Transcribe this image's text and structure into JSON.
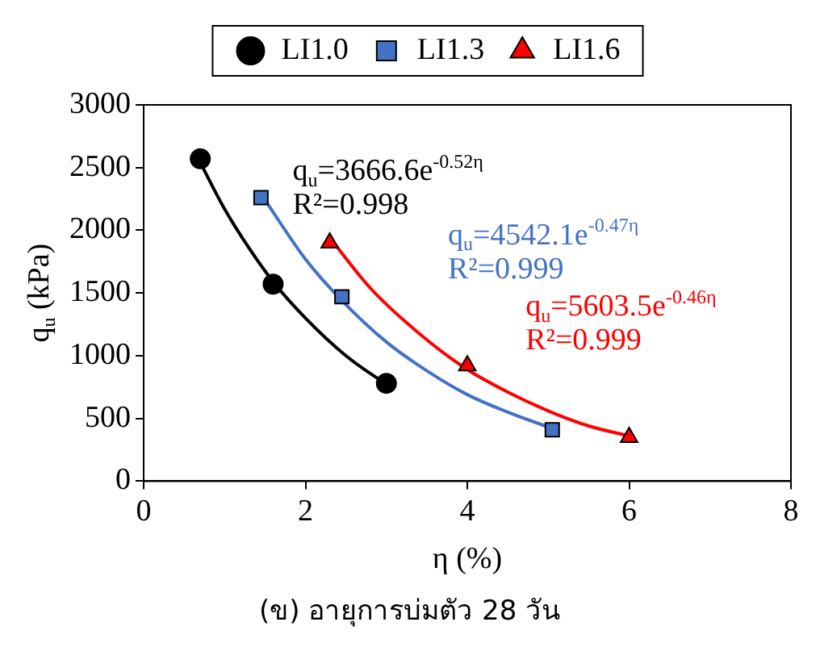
{
  "chart_data": {
    "type": "scatter",
    "title": "(ข) อายุการบ่มตัว 28 วัน",
    "xlabel": "η (%)",
    "ylabel": "q$_{u}$ (kPa)",
    "xlim": [
      0,
      8
    ],
    "xticks": [
      0,
      2,
      4,
      6,
      8
    ],
    "ylim": [
      0,
      3000
    ],
    "yticks": [
      0,
      500,
      1000,
      1500,
      2000,
      2500,
      3000
    ],
    "grid": false,
    "legend": "top",
    "series": [
      {
        "name": "LI1.0",
        "marker": "circle",
        "color": "#000000",
        "x": [
          0.7,
          1.6,
          3.0
        ],
        "values": [
          2570,
          1570,
          780
        ]
      },
      {
        "name": "LI1.3",
        "marker": "square",
        "color": "#4472c4",
        "x": [
          1.45,
          2.45,
          5.05
        ],
        "values": [
          2260,
          1470,
          410
        ]
      },
      {
        "name": "LI1.6",
        "marker": "triangle",
        "color": "#ff0000",
        "x": [
          2.3,
          4.0,
          6.0
        ],
        "values": [
          1900,
          920,
          350
        ]
      },
      {
        "type": "line",
        "marker": "none",
        "color": "#000000",
        "x": [
          0.7,
          1.0,
          1.3,
          1.6,
          2.0,
          2.5,
          3.0
        ],
        "values": [
          2540,
          2170,
          1860,
          1590,
          1300,
          1000,
          770
        ]
      },
      {
        "type": "line",
        "marker": "none",
        "color": "#4472c4",
        "x": [
          1.45,
          2.0,
          2.45,
          3.0,
          3.5,
          4.0,
          4.5,
          5.05
        ],
        "values": [
          2290,
          1770,
          1440,
          1110,
          880,
          690,
          550,
          420
        ]
      },
      {
        "type": "line",
        "marker": "none",
        "color": "#ff0000",
        "x": [
          2.3,
          2.8,
          3.4,
          4.0,
          4.5,
          5.0,
          5.5,
          6.0
        ],
        "values": [
          1940,
          1540,
          1180,
          890,
          710,
          560,
          440,
          360
        ]
      }
    ],
    "annotations": [
      "q$_{u}$=3666.6e$^{-0.52η}$",
      "R²=0.998",
      "q$_{u}$=4542.1e$^{-0.47η}$",
      "R²=0.999",
      "q$_{u}$=5603.5e$^{-0.46η}$",
      "R²=0.999"
    ]
  }
}
